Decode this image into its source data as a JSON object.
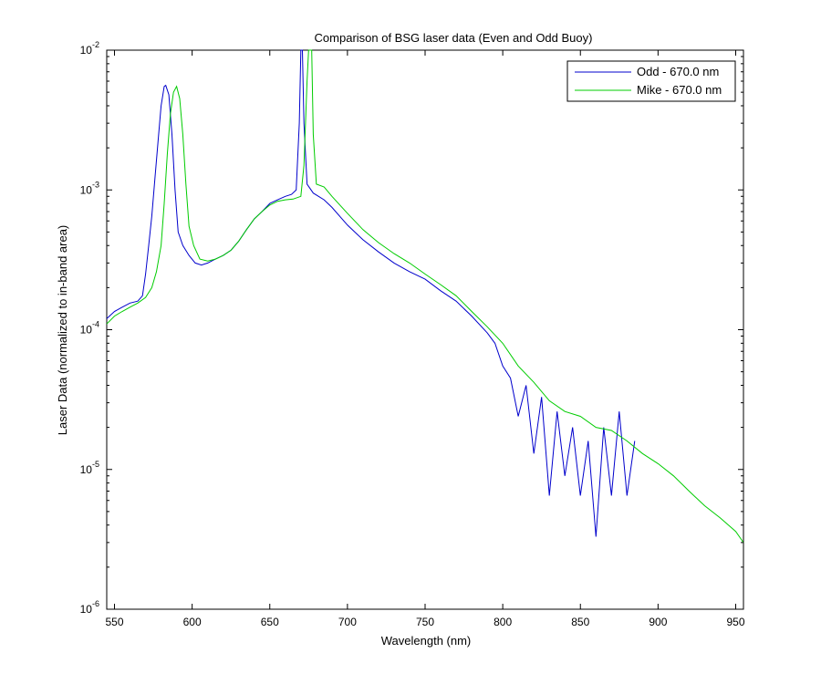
{
  "chart_data": {
    "type": "line",
    "title": "Comparison of BSG laser data (Even and Odd Buoy)",
    "xlabel": "Wavelength (nm)",
    "ylabel": "Laser Data (normalized to in-band area)",
    "xlim": [
      545,
      955
    ],
    "ylim": [
      1e-06,
      0.01
    ],
    "yscale": "log",
    "grid": false,
    "legend_position": "top-right",
    "xticks": [
      {
        "value": 550,
        "label": "550"
      },
      {
        "value": 600,
        "label": "600"
      },
      {
        "value": 650,
        "label": "650"
      },
      {
        "value": 700,
        "label": "700"
      },
      {
        "value": 750,
        "label": "750"
      },
      {
        "value": 800,
        "label": "800"
      },
      {
        "value": 850,
        "label": "850"
      },
      {
        "value": 900,
        "label": "900"
      },
      {
        "value": 950,
        "label": "950"
      }
    ],
    "yticks": [
      {
        "value": 0.01,
        "base": "10",
        "exp": "-2"
      },
      {
        "value": 0.001,
        "base": "10",
        "exp": "-3"
      },
      {
        "value": 0.0001,
        "base": "10",
        "exp": "-4"
      },
      {
        "value": 1e-05,
        "base": "10",
        "exp": "-5"
      },
      {
        "value": 1e-06,
        "base": "10",
        "exp": "-6"
      }
    ],
    "series": [
      {
        "name": "Odd - 670.0 nm",
        "color": "#0000cc",
        "points": [
          [
            545,
            0.00012
          ],
          [
            550,
            0.000135
          ],
          [
            555,
            0.000145
          ],
          [
            560,
            0.000155
          ],
          [
            565,
            0.00016
          ],
          [
            568,
            0.000175
          ],
          [
            570,
            0.00025
          ],
          [
            572,
            0.0004
          ],
          [
            574,
            0.00065
          ],
          [
            576,
            0.0012
          ],
          [
            578,
            0.0022
          ],
          [
            580,
            0.004
          ],
          [
            582,
            0.0055
          ],
          [
            583,
            0.0056
          ],
          [
            585,
            0.0048
          ],
          [
            587,
            0.0025
          ],
          [
            589,
            0.001
          ],
          [
            591,
            0.0005
          ],
          [
            594,
            0.0004
          ],
          [
            598,
            0.00034
          ],
          [
            602,
            0.0003
          ],
          [
            606,
            0.00029
          ],
          [
            610,
            0.0003
          ],
          [
            615,
            0.00032
          ],
          [
            620,
            0.00034
          ],
          [
            625,
            0.00037
          ],
          [
            630,
            0.00043
          ],
          [
            635,
            0.00052
          ],
          [
            640,
            0.00062
          ],
          [
            645,
            0.0007
          ],
          [
            650,
            0.0008
          ],
          [
            655,
            0.00085
          ],
          [
            660,
            0.0009
          ],
          [
            664,
            0.00093
          ],
          [
            667,
            0.001
          ],
          [
            669,
            0.003
          ],
          [
            670,
            0.01
          ],
          [
            671,
            0.01
          ],
          [
            672,
            0.003
          ],
          [
            674,
            0.0011
          ],
          [
            678,
            0.00095
          ],
          [
            685,
            0.00085
          ],
          [
            690,
            0.00075
          ],
          [
            700,
            0.00056
          ],
          [
            710,
            0.00044
          ],
          [
            720,
            0.00036
          ],
          [
            730,
            0.0003
          ],
          [
            740,
            0.00026
          ],
          [
            750,
            0.00023
          ],
          [
            760,
            0.00019
          ],
          [
            770,
            0.00016
          ],
          [
            780,
            0.000125
          ],
          [
            790,
            9.5e-05
          ],
          [
            795,
            8e-05
          ],
          [
            800,
            5.5e-05
          ],
          [
            805,
            4.5e-05
          ],
          [
            810,
            2.4e-05
          ],
          [
            815,
            4e-05
          ],
          [
            820,
            1.3e-05
          ],
          [
            825,
            3.3e-05
          ],
          [
            830,
            6.5e-06
          ],
          [
            835,
            2.6e-05
          ],
          [
            840,
            9e-06
          ],
          [
            845,
            2e-05
          ],
          [
            850,
            6.5e-06
          ],
          [
            855,
            1.6e-05
          ],
          [
            860,
            3.3e-06
          ],
          [
            865,
            2e-05
          ],
          [
            870,
            6.5e-06
          ],
          [
            875,
            2.6e-05
          ],
          [
            880,
            6.5e-06
          ],
          [
            885,
            1.6e-05
          ]
        ]
      },
      {
        "name": "Mike - 670.0 nm",
        "color": "#00cc00",
        "points": [
          [
            545,
            0.00011
          ],
          [
            550,
            0.000125
          ],
          [
            555,
            0.000135
          ],
          [
            560,
            0.000145
          ],
          [
            565,
            0.000155
          ],
          [
            570,
            0.00017
          ],
          [
            574,
            0.0002
          ],
          [
            577,
            0.00026
          ],
          [
            580,
            0.0004
          ],
          [
            582,
            0.0008
          ],
          [
            584,
            0.0018
          ],
          [
            586,
            0.0035
          ],
          [
            588,
            0.005
          ],
          [
            590,
            0.0055
          ],
          [
            592,
            0.0045
          ],
          [
            594,
            0.0025
          ],
          [
            596,
            0.0011
          ],
          [
            598,
            0.00055
          ],
          [
            601,
            0.0004
          ],
          [
            605,
            0.00032
          ],
          [
            610,
            0.00031
          ],
          [
            615,
            0.00032
          ],
          [
            620,
            0.00034
          ],
          [
            625,
            0.00037
          ],
          [
            630,
            0.00043
          ],
          [
            635,
            0.00052
          ],
          [
            640,
            0.00062
          ],
          [
            645,
            0.0007
          ],
          [
            650,
            0.00078
          ],
          [
            655,
            0.00083
          ],
          [
            660,
            0.00085
          ],
          [
            665,
            0.00086
          ],
          [
            670,
            0.0009
          ],
          [
            672,
            0.0015
          ],
          [
            674,
            0.006
          ],
          [
            675,
            0.01
          ],
          [
            677,
            0.01
          ],
          [
            678,
            0.0025
          ],
          [
            680,
            0.0011
          ],
          [
            685,
            0.00105
          ],
          [
            690,
            0.0009
          ],
          [
            700,
            0.00068
          ],
          [
            710,
            0.00052
          ],
          [
            720,
            0.00042
          ],
          [
            730,
            0.00035
          ],
          [
            740,
            0.0003
          ],
          [
            750,
            0.00025
          ],
          [
            760,
            0.00021
          ],
          [
            770,
            0.000175
          ],
          [
            780,
            0.000135
          ],
          [
            790,
            0.000105
          ],
          [
            800,
            8e-05
          ],
          [
            810,
            5.5e-05
          ],
          [
            820,
            4.2e-05
          ],
          [
            830,
            3.1e-05
          ],
          [
            840,
            2.6e-05
          ],
          [
            850,
            2.4e-05
          ],
          [
            860,
            2e-05
          ],
          [
            870,
            1.9e-05
          ],
          [
            880,
            1.6e-05
          ],
          [
            890,
            1.3e-05
          ],
          [
            900,
            1.1e-05
          ],
          [
            910,
            9e-06
          ],
          [
            920,
            7e-06
          ],
          [
            930,
            5.5e-06
          ],
          [
            940,
            4.5e-06
          ],
          [
            950,
            3.6e-06
          ],
          [
            955,
            3e-06
          ]
        ]
      }
    ]
  }
}
